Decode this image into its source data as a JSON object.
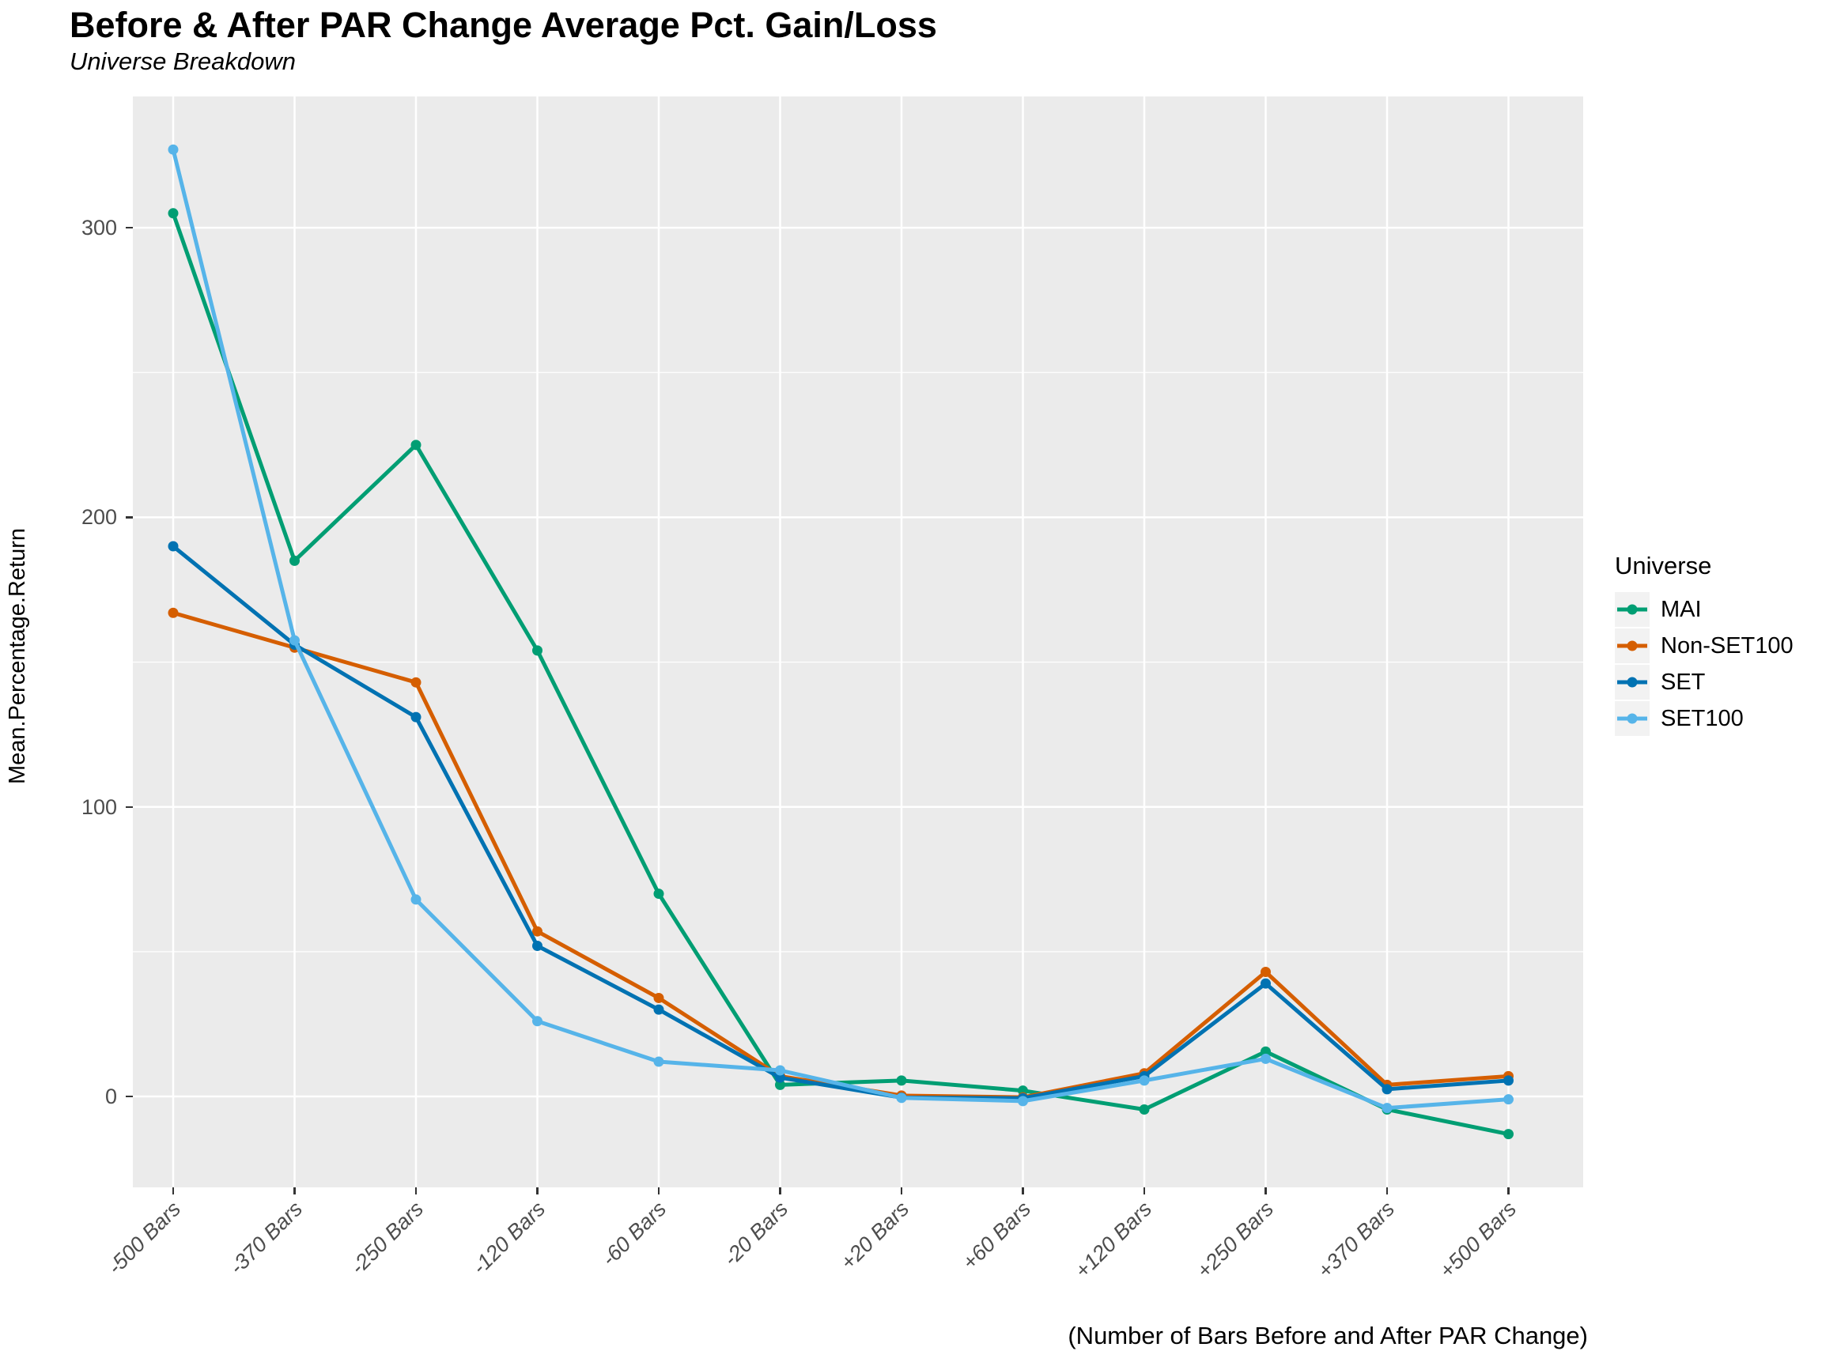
{
  "header": {
    "title": "Before & After PAR Change Average Pct. Gain/Loss",
    "subtitle": "Universe Breakdown"
  },
  "y_axis": {
    "label": "Mean.Percentage.Return",
    "tick_labels": [
      "0",
      "100",
      "200",
      "300"
    ],
    "tick_values": [
      0,
      100,
      200,
      300
    ],
    "minor_grid_values": [
      50,
      150,
      250
    ]
  },
  "x_axis": {
    "tick_labels": [
      "-500 Bars",
      "-370 Bars",
      "-250 Bars",
      "-120 Bars",
      "-60 Bars",
      "-20 Bars",
      "+20 Bars",
      "+60 Bars",
      "+120 Bars",
      "+250 Bars",
      "+370 Bars",
      "+500 Bars"
    ],
    "caption": "(Number of Bars Before and After PAR Change)"
  },
  "legend": {
    "title": "Universe",
    "items": [
      {
        "label": "MAI",
        "color": "#009E73"
      },
      {
        "label": "Non-SET100",
        "color": "#D55E00"
      },
      {
        "label": "SET",
        "color": "#0072B2"
      },
      {
        "label": "SET100",
        "color": "#56B4E9"
      }
    ]
  },
  "colors": {
    "panel_background": "#EBEBEB",
    "gridline": "#FFFFFF",
    "axis_text": "#4D4D4D",
    "tick_mark": "#333333",
    "legend_key_background": "#F2F2F2"
  },
  "chart_data": {
    "type": "line",
    "title": "Before & After PAR Change Average Pct. Gain/Loss",
    "subtitle": "Universe Breakdown",
    "xlabel": "(Number of Bars Before and After PAR Change)",
    "ylabel": "Mean.Percentage.Return",
    "categories": [
      "-500 Bars",
      "-370 Bars",
      "-250 Bars",
      "-120 Bars",
      "-60 Bars",
      "-20 Bars",
      "+20 Bars",
      "+60 Bars",
      "+120 Bars",
      "+250 Bars",
      "+370 Bars",
      "+500 Bars"
    ],
    "series": [
      {
        "name": "MAI",
        "color": "#009E73",
        "values": [
          305,
          185,
          225,
          154,
          70,
          4,
          5.5,
          2,
          -4.5,
          15.5,
          -4.5,
          -13
        ]
      },
      {
        "name": "Non-SET100",
        "color": "#D55E00",
        "values": [
          167,
          155,
          143,
          57,
          34,
          7,
          0.3,
          -0.3,
          8,
          43,
          4,
          7
        ]
      },
      {
        "name": "SET",
        "color": "#0072B2",
        "values": [
          190,
          156,
          131,
          52,
          30,
          6.5,
          -0.4,
          -0.6,
          7,
          39,
          2.5,
          5.5
        ]
      },
      {
        "name": "SET100",
        "color": "#56B4E9",
        "values": [
          327,
          157.5,
          68,
          26,
          12,
          9,
          -0.5,
          -1.6,
          5.5,
          13,
          -4,
          -1
        ]
      }
    ],
    "ylim": [
      -31,
      345
    ],
    "yticks": [
      0,
      100,
      200,
      300
    ],
    "grid": true,
    "legend_position": "right",
    "legend_title": "Universe",
    "marker": "point"
  }
}
